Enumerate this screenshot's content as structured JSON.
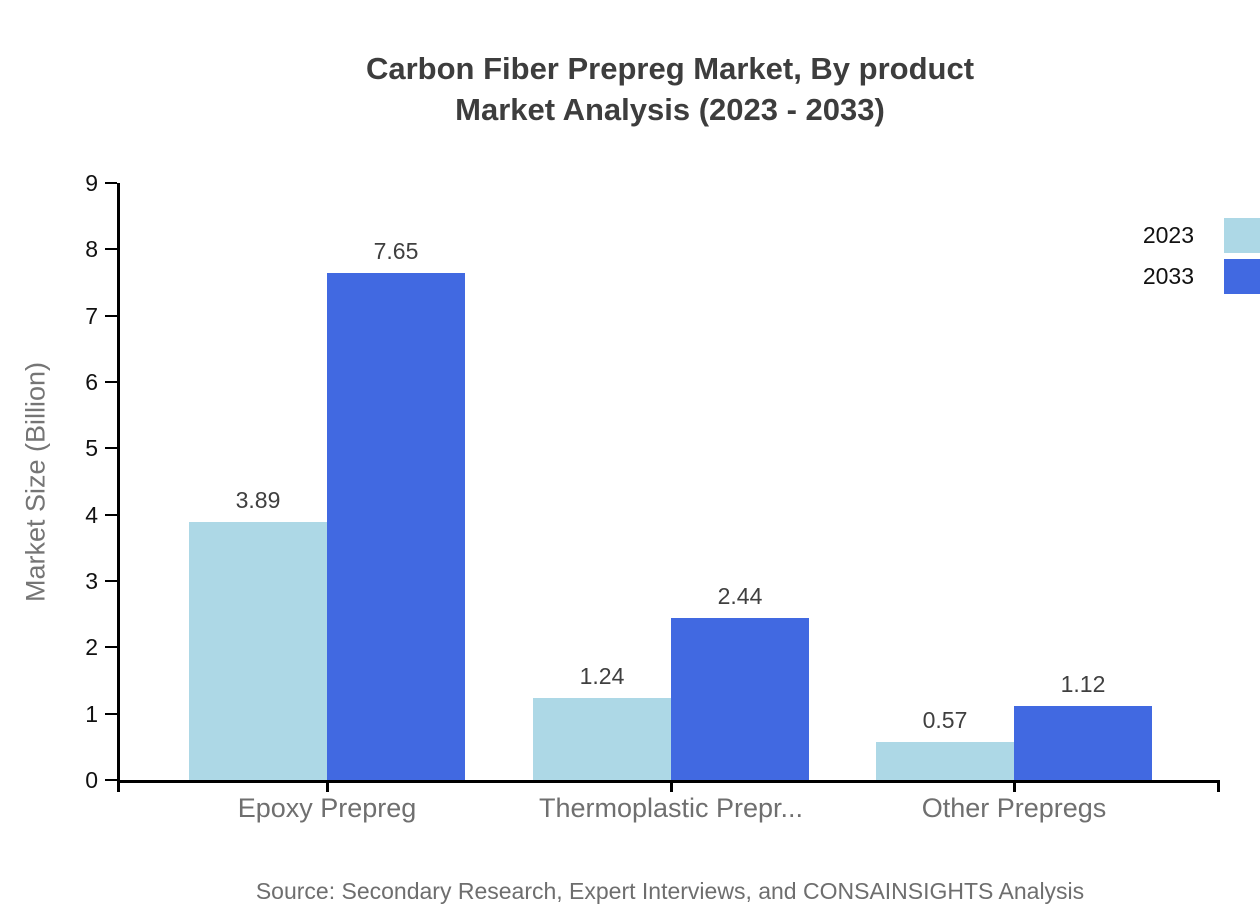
{
  "title": {
    "line1": "Carbon Fiber Prepreg Market, By product",
    "line2": "Market Analysis (2023 - 2033)"
  },
  "source": {
    "text": "Source: Secondary Research, Expert Interviews, and CONSAINSIGHTS Analysis"
  },
  "colors": {
    "series_2023": "#ADD8E6",
    "series_2033": "#4169E1",
    "axis": "#000000",
    "title_text": "#3d3d3d",
    "category_text": "#6f6f6f",
    "value_text": "#3f3f3f",
    "source_text": "#6e6e6e"
  },
  "chart_data": {
    "type": "bar",
    "title": "Carbon Fiber Prepreg Market, By product Market Analysis (2023 - 2033)",
    "categories": [
      "Epoxy Prepreg",
      "Thermoplastic Prepr...",
      "Other Prepregs"
    ],
    "series": [
      {
        "name": "2023",
        "color": "#ADD8E6",
        "values": [
          3.89,
          1.24,
          0.57
        ]
      },
      {
        "name": "2033",
        "color": "#4169E1",
        "values": [
          7.65,
          2.44,
          1.12
        ]
      }
    ],
    "xlabel": "",
    "ylabel": "Market Size (Billion)",
    "ylim": [
      0,
      9
    ],
    "yticks": [
      0,
      1,
      2,
      3,
      4,
      5,
      6,
      7,
      8,
      9
    ],
    "grid": false,
    "legend_position": "top-right",
    "value_labels": true
  }
}
